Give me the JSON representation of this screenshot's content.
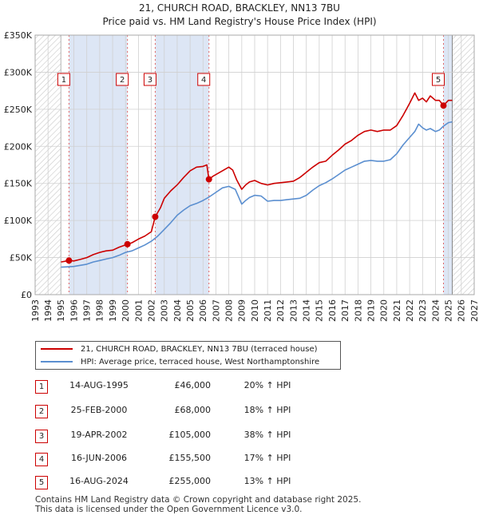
{
  "title": "21, CHURCH ROAD, BRACKLEY, NN13 7BU",
  "subtitle": "Price paid vs. HM Land Registry's House Price Index (HPI)",
  "colors": {
    "price": "#cc0000",
    "hpi": "#5b8fd0",
    "shade": "#dde6f5",
    "grid": "#d0d0d0"
  },
  "chart_data": {
    "type": "line",
    "xlim": [
      1993,
      2027
    ],
    "ylim": [
      0,
      350000
    ],
    "x_ticks": [
      1993,
      1994,
      1995,
      1996,
      1997,
      1998,
      1999,
      2000,
      2001,
      2002,
      2003,
      2004,
      2005,
      2006,
      2007,
      2008,
      2009,
      2010,
      2011,
      2012,
      2013,
      2014,
      2015,
      2016,
      2017,
      2018,
      2019,
      2020,
      2021,
      2022,
      2023,
      2024,
      2025,
      2026,
      2027
    ],
    "y_ticks": [
      0,
      50000,
      100000,
      150000,
      200000,
      250000,
      300000,
      350000
    ],
    "y_tick_labels": [
      "£0",
      "£50K",
      "£100K",
      "£150K",
      "£200K",
      "£250K",
      "£300K",
      "£350K"
    ],
    "hatched_ranges": [
      [
        1993,
        1995.0
      ],
      [
        2025.3,
        2027
      ]
    ],
    "shaded_ranges": [
      [
        1995.62,
        2000.15
      ],
      [
        2002.3,
        2006.46
      ],
      [
        2024.62,
        2025.3
      ]
    ],
    "series": [
      {
        "name": "21, CHURCH ROAD, BRACKLEY, NN13 7BU (terraced house)",
        "x": [
          1995.0,
          1995.62,
          1996.0,
          1996.5,
          1997.0,
          1997.5,
          1998.0,
          1998.5,
          1999.0,
          1999.5,
          2000.15,
          2000.5,
          2001.0,
          2001.5,
          2002.0,
          2002.3,
          2002.7,
          2003.0,
          2003.5,
          2004.0,
          2004.5,
          2005.0,
          2005.5,
          2006.0,
          2006.3,
          2006.46,
          2006.8,
          2007.0,
          2007.5,
          2008.0,
          2008.3,
          2008.6,
          2009.0,
          2009.3,
          2009.6,
          2010.0,
          2010.5,
          2011.0,
          2011.5,
          2012.0,
          2012.5,
          2013.0,
          2013.5,
          2014.0,
          2014.5,
          2015.0,
          2015.5,
          2016.0,
          2016.5,
          2017.0,
          2017.5,
          2018.0,
          2018.5,
          2019.0,
          2019.5,
          2020.0,
          2020.5,
          2021.0,
          2021.5,
          2022.0,
          2022.4,
          2022.7,
          2023.0,
          2023.3,
          2023.6,
          2024.0,
          2024.3,
          2024.62,
          2025.0,
          2025.3
        ],
        "values": [
          44000,
          46000,
          45500,
          47500,
          50000,
          54000,
          57000,
          59000,
          60000,
          64000,
          68000,
          70000,
          75000,
          79000,
          85000,
          105000,
          117000,
          130000,
          140000,
          148000,
          158000,
          167000,
          172000,
          173000,
          175000,
          155500,
          160000,
          162000,
          167000,
          172000,
          168000,
          155000,
          142000,
          148000,
          152000,
          154000,
          150000,
          148000,
          150000,
          151000,
          152000,
          153000,
          158000,
          165000,
          172000,
          178000,
          180000,
          188000,
          195000,
          203000,
          208000,
          215000,
          220000,
          222000,
          220000,
          222000,
          222000,
          228000,
          242000,
          258000,
          272000,
          262000,
          265000,
          260000,
          268000,
          262000,
          262000,
          255000,
          262000,
          262000
        ]
      },
      {
        "name": "HPI: Average price, terraced house, West Northamptonshire",
        "x": [
          1995.0,
          1995.5,
          1996.0,
          1996.5,
          1997.0,
          1997.5,
          1998.0,
          1998.5,
          1999.0,
          1999.5,
          2000.0,
          2000.5,
          2001.0,
          2001.5,
          2002.0,
          2002.5,
          2003.0,
          2003.5,
          2004.0,
          2004.5,
          2005.0,
          2005.5,
          2006.0,
          2006.5,
          2007.0,
          2007.5,
          2008.0,
          2008.5,
          2008.8,
          2009.0,
          2009.3,
          2009.6,
          2010.0,
          2010.5,
          2011.0,
          2011.5,
          2012.0,
          2012.5,
          2013.0,
          2013.5,
          2014.0,
          2014.5,
          2015.0,
          2015.5,
          2016.0,
          2016.5,
          2017.0,
          2017.5,
          2018.0,
          2018.5,
          2019.0,
          2019.5,
          2020.0,
          2020.5,
          2021.0,
          2021.5,
          2022.0,
          2022.4,
          2022.7,
          2023.0,
          2023.3,
          2023.6,
          2024.0,
          2024.3,
          2024.6,
          2025.0,
          2025.3
        ],
        "values": [
          37000,
          37500,
          38000,
          39500,
          41000,
          44000,
          46000,
          48000,
          50000,
          53000,
          57000,
          59000,
          63000,
          67000,
          72000,
          79000,
          88000,
          97000,
          107000,
          114000,
          120000,
          123000,
          127000,
          132000,
          138000,
          144000,
          146000,
          142000,
          130000,
          122000,
          127000,
          131000,
          134000,
          133000,
          126000,
          127000,
          127000,
          128000,
          129000,
          130000,
          134000,
          141000,
          147000,
          151000,
          156000,
          162000,
          168000,
          172000,
          176000,
          180000,
          181000,
          180000,
          180000,
          182000,
          190000,
          202000,
          212000,
          220000,
          230000,
          225000,
          222000,
          224000,
          220000,
          222000,
          227000,
          232000,
          233000
        ]
      }
    ],
    "sales": [
      {
        "label": "1",
        "x": 1995.62,
        "value": 46000
      },
      {
        "label": "2",
        "x": 2000.15,
        "value": 68000
      },
      {
        "label": "3",
        "x": 2002.3,
        "value": 105000
      },
      {
        "label": "4",
        "x": 2006.46,
        "value": 155500
      },
      {
        "label": "5",
        "x": 2024.62,
        "value": 255000
      }
    ]
  },
  "legend": {
    "price": "21, CHURCH ROAD, BRACKLEY, NN13 7BU (terraced house)",
    "hpi": "HPI: Average price, terraced house, West Northamptonshire"
  },
  "transactions": [
    {
      "num": "1",
      "date": "14-AUG-1995",
      "price": "£46,000",
      "hpi": "20% ↑ HPI"
    },
    {
      "num": "2",
      "date": "25-FEB-2000",
      "price": "£68,000",
      "hpi": "18% ↑ HPI"
    },
    {
      "num": "3",
      "date": "19-APR-2002",
      "price": "£105,000",
      "hpi": "38% ↑ HPI"
    },
    {
      "num": "4",
      "date": "16-JUN-2006",
      "price": "£155,500",
      "hpi": "17% ↑ HPI"
    },
    {
      "num": "5",
      "date": "16-AUG-2024",
      "price": "£255,000",
      "hpi": "13% ↑ HPI"
    }
  ],
  "footer": {
    "line1": "Contains HM Land Registry data © Crown copyright and database right 2025.",
    "line2": "This data is licensed under the Open Government Licence v3.0."
  }
}
